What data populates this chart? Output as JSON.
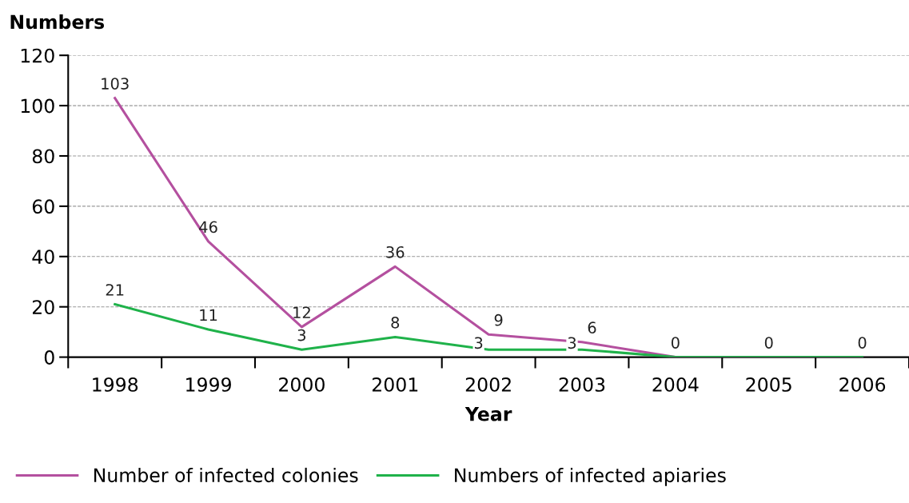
{
  "chart_data": {
    "type": "line",
    "ylabel": "Numbers",
    "xlabel": "Year",
    "categories": [
      "1998",
      "1999",
      "2000",
      "2001",
      "2002",
      "2003",
      "2004",
      "2005",
      "2006"
    ],
    "series": [
      {
        "name": "Number of infected colonies",
        "color": "#b4509f",
        "values": [
          103,
          46,
          12,
          36,
          9,
          6,
          0,
          0,
          0
        ],
        "value_labels": [
          "103",
          "46",
          "12",
          "36",
          "9",
          "6",
          "0",
          "0",
          "0"
        ]
      },
      {
        "name": "Numbers of infected apiaries",
        "color": "#1fb24a",
        "values": [
          21,
          11,
          3,
          8,
          3,
          3,
          0,
          0,
          0
        ],
        "value_labels": [
          "21",
          "11",
          "3",
          "8",
          "3",
          "3",
          null,
          null,
          null
        ]
      }
    ],
    "ylim": [
      0,
      120
    ],
    "yticks": [
      0,
      20,
      40,
      60,
      80,
      100,
      120
    ],
    "grid": "y",
    "legend": "bottom",
    "marker": "none",
    "line_style": "solid"
  }
}
